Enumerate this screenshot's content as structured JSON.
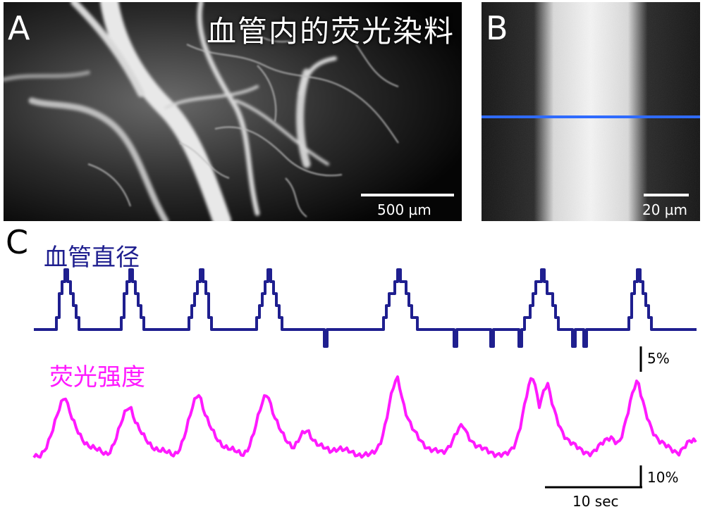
{
  "panels": {
    "a": {
      "label": "A",
      "title": "血管内的荧光染料",
      "scale_text": "500 µm"
    },
    "b": {
      "label": "B",
      "scale_text": "20 µm"
    },
    "c": {
      "label": "C"
    }
  },
  "traces": {
    "diameter": {
      "name": "血管直径",
      "color": "#1f1f8f",
      "scale_text": "5%"
    },
    "fluorescence": {
      "name": "荧光强度",
      "color": "#ff1aff",
      "scale_text": "10%"
    },
    "time_scale_text": "10 sec"
  },
  "colors": {
    "line_scan": "#2f6bff"
  }
}
